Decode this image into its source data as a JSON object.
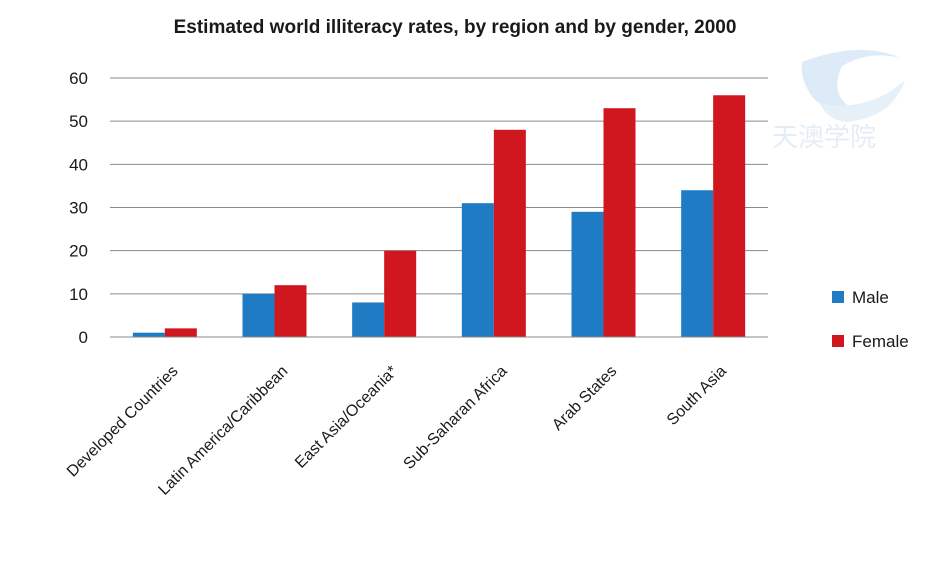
{
  "chart_data": {
    "type": "bar",
    "title": "Estimated world illiteracy rates, by region and by gender, 2000",
    "categories": [
      "Developed Countries",
      "Latin America/Caribbean",
      "East Asia/Oceania*",
      "Sub-Saharan Africa",
      "Arab States",
      "South Asia"
    ],
    "series": [
      {
        "name": "Male",
        "color": "#1f7bc4",
        "values": [
          1,
          10,
          8,
          31,
          29,
          34
        ]
      },
      {
        "name": "Female",
        "color": "#d0161e",
        "values": [
          2,
          12,
          20,
          48,
          53,
          56
        ]
      }
    ],
    "ylim": [
      0,
      60
    ],
    "yticks": [
      0,
      10,
      20,
      30,
      40,
      50,
      60
    ],
    "xlabel": "",
    "ylabel": "",
    "grid": true,
    "legend_position": "right"
  },
  "watermark": {
    "text": "天澳学院",
    "icon": "logo-swoosh-icon",
    "color": "#cfe0ef"
  }
}
